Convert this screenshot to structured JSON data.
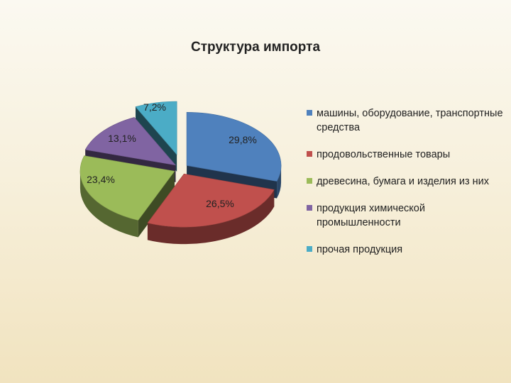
{
  "chart_data": {
    "type": "pie",
    "title": "Структура импорта",
    "slices": [
      {
        "label": "машины, оборудование, транспортные средства",
        "value": 29.8,
        "value_label": "29,8%",
        "color": "#4f81bd"
      },
      {
        "label": "продовольственные товары",
        "value": 26.5,
        "value_label": "26,5%",
        "color": "#c0504d"
      },
      {
        "label": "древесина, бумага и изделия из них",
        "value": 23.4,
        "value_label": "23,4%",
        "color": "#9bbb59"
      },
      {
        "label": "продукция химической промышленности",
        "value": 13.1,
        "value_label": "13,1%",
        "color": "#8064a2"
      },
      {
        "label": "прочая продукция",
        "value": 7.2,
        "value_label": "7,2%",
        "color": "#4bacc6"
      }
    ],
    "legend_position": "right",
    "style": "3d exploded"
  }
}
